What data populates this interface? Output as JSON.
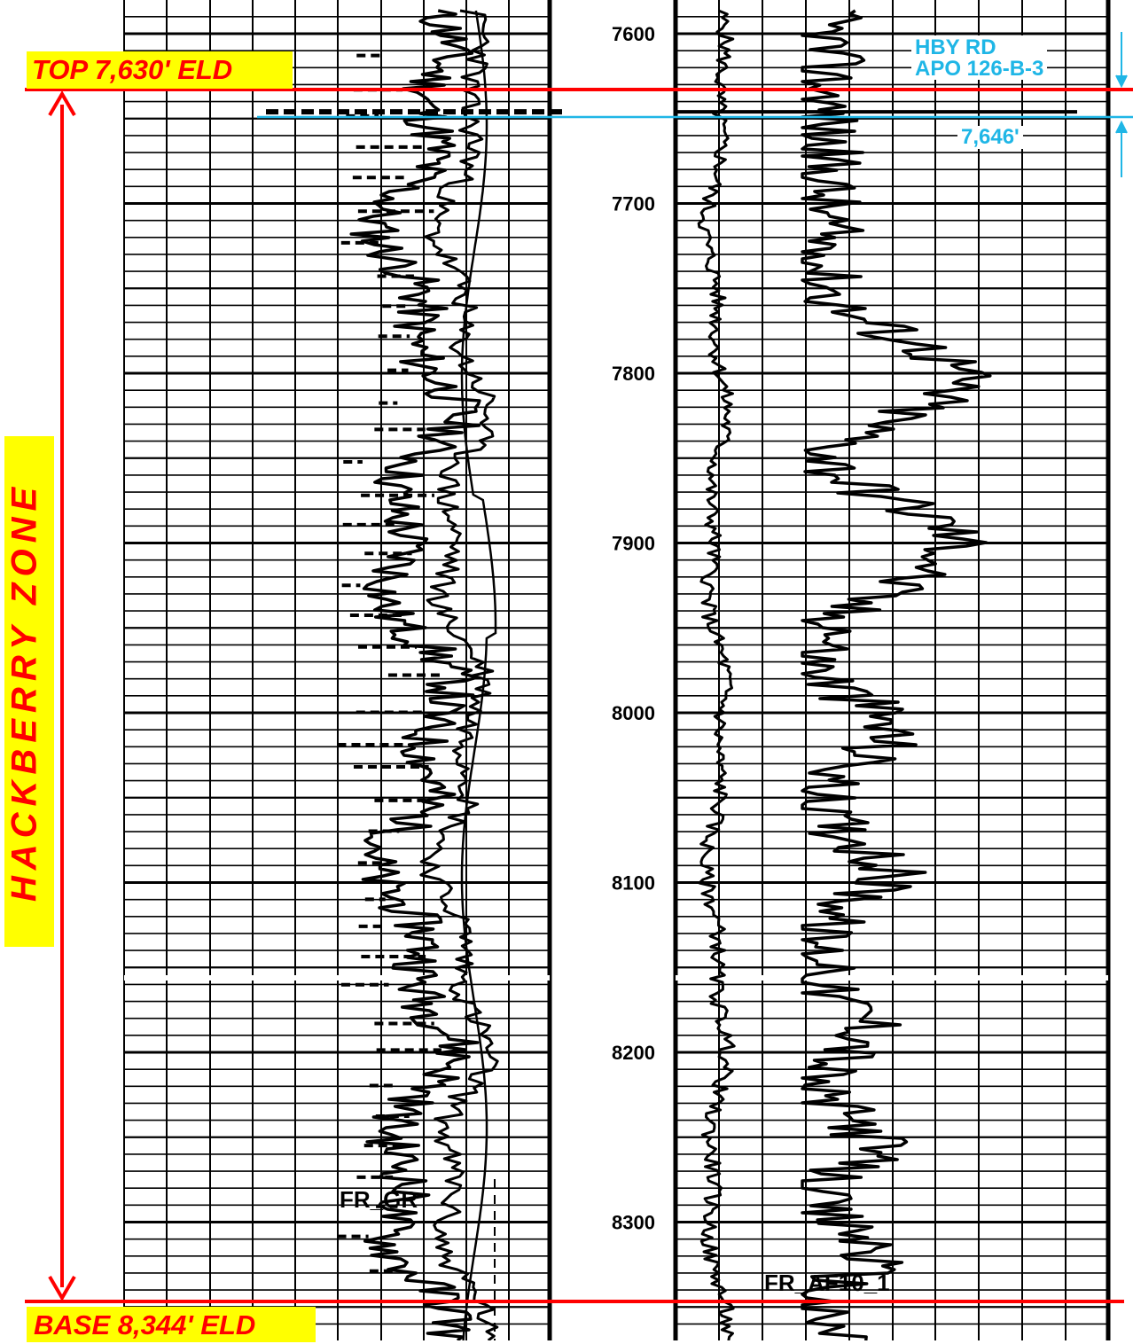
{
  "log": {
    "depth_ticks": [
      "7600",
      "7700",
      "7800",
      "7900",
      "8000",
      "8100",
      "8200",
      "8300"
    ],
    "curve_left_label": "FR_GR",
    "curve_right_label": "FR_AF10_1"
  },
  "zone": {
    "name": "HACKBERRY ZONE",
    "top_label": "TOP 7,630' ELD",
    "base_label": "BASE 8,344' ELD"
  },
  "marker": {
    "well_line1": "HBY RD",
    "well_line2": "APO 126-B-3",
    "depth_label": "7,646'"
  },
  "colors": {
    "zone": "#ff0000",
    "label_bg": "#ffff00",
    "marker": "#1fb6e6",
    "grid": "#000000"
  }
}
